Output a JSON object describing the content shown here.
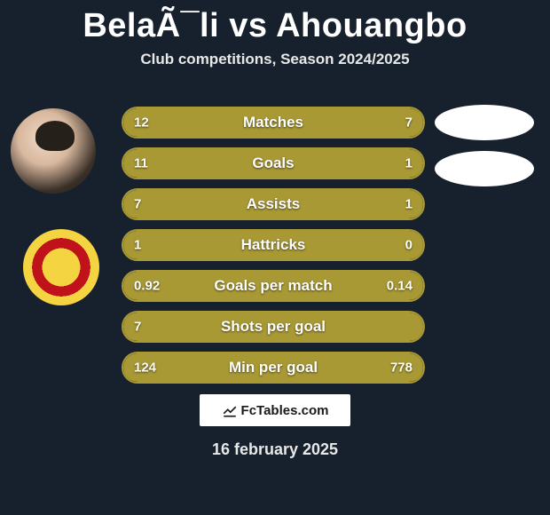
{
  "title": "BelaÃ¯li vs Ahouangbo",
  "subtitle": "Club competitions, Season 2024/2025",
  "footer_brand": "FcTables.com",
  "footer_date": "16 february 2025",
  "colors": {
    "background": "#17212d",
    "bar_fill": "#a99934",
    "bar_border": "#a99934",
    "text": "#ffffff"
  },
  "bars": [
    {
      "label": "Matches",
      "left": "12",
      "right": "7",
      "left_pct": 63,
      "right_pct": 37
    },
    {
      "label": "Goals",
      "left": "11",
      "right": "1",
      "left_pct": 92,
      "right_pct": 8
    },
    {
      "label": "Assists",
      "left": "7",
      "right": "1",
      "left_pct": 88,
      "right_pct": 12
    },
    {
      "label": "Hattricks",
      "left": "1",
      "right": "0",
      "left_pct": 100,
      "right_pct": 0
    },
    {
      "label": "Goals per match",
      "left": "0.92",
      "right": "0.14",
      "left_pct": 87,
      "right_pct": 13
    },
    {
      "label": "Shots per goal",
      "left": "7",
      "right": "",
      "left_pct": 100,
      "right_pct": 0
    },
    {
      "label": "Min per goal",
      "left": "124",
      "right": "778",
      "left_pct": 14,
      "right_pct": 86
    }
  ]
}
